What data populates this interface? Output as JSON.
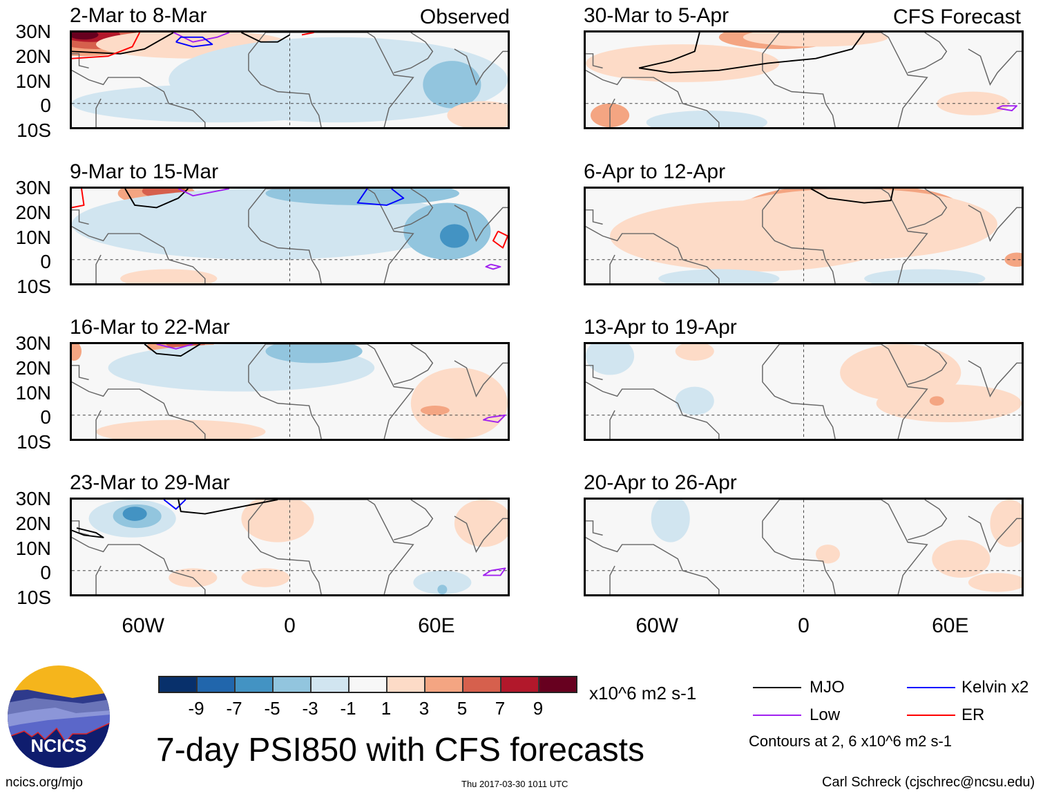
{
  "figure": {
    "main_title": "7-day PSI850 with CFS forecasts",
    "observed_label": "Observed",
    "forecast_label": "CFS Forecast",
    "logo_text": "NCICS",
    "website": "ncics.org/mjo",
    "timestamp": "Thu 2017-03-30 1011 UTC",
    "author": "Carl Schreck (cjschrec@ncsu.edu)"
  },
  "axes": {
    "y_ticks": [
      "30N",
      "20N",
      "10N",
      "0",
      "10S"
    ],
    "x_ticks": [
      "60W",
      "0",
      "60E"
    ]
  },
  "colorbar": {
    "colors": [
      "#08306b",
      "#2166ac",
      "#4393c3",
      "#92c5de",
      "#d1e5f0",
      "#f7f7f7",
      "#fddbc7",
      "#f4a582",
      "#d6604d",
      "#b2182b",
      "#67001f"
    ],
    "tick_labels": [
      "-9",
      "-7",
      "-5",
      "-3",
      "-1",
      "1",
      "3",
      "5",
      "7",
      "9"
    ],
    "units": "x10^6 m2 s-1"
  },
  "legend": {
    "items": [
      {
        "label": "MJO",
        "color": "#000000"
      },
      {
        "label": "Kelvin x2",
        "color": "#0000ff"
      },
      {
        "label": "Low",
        "color": "#a020f0"
      },
      {
        "label": "ER",
        "color": "#ff0000"
      }
    ],
    "note": "Contours at 2, 6 x10^6 m2 s-1"
  },
  "chart_data": {
    "type": "heatmap",
    "title": "7-day PSI850 with CFS forecasts",
    "variable": "850-hPa streamfunction anomaly",
    "units": "x10^6 m2 s-1",
    "xlim": [
      "90W",
      "90E"
    ],
    "ylim": [
      "10S",
      "30N"
    ],
    "x_tick_labels": [
      "60W",
      "0",
      "60E"
    ],
    "y_tick_labels": [
      "30N",
      "20N",
      "10N",
      "0",
      "10S"
    ],
    "levels": [
      -9,
      -7,
      -5,
      -3,
      -1,
      1,
      3,
      5,
      7,
      9
    ],
    "contour_levels": [
      2,
      6
    ],
    "contour_series": [
      "MJO",
      "Kelvin x2",
      "Low",
      "ER"
    ],
    "panels": [
      {
        "period": "2-Mar to 8-Mar",
        "kind": "Observed",
        "summary": "Strong positive (7 to >9) over Gulf of Mexico/Caribbean near 25-30N; weak negative across tropical Atlantic and Africa; moderate negative (-3 to -5) over Arabian Sea/Indian Ocean",
        "contours": [
          "MJO",
          "Kelvin x2",
          "Low",
          "ER"
        ]
      },
      {
        "period": "9-Mar to 15-Mar",
        "kind": "Observed",
        "summary": "Positive (5 to 7) centered near 50W 28N; negative (-3 to -5) over central Atlantic, Arabian Peninsula and Arabian Sea",
        "contours": [
          "MJO",
          "Kelvin x2",
          "Low",
          "ER"
        ]
      },
      {
        "period": "16-Mar to 22-Mar",
        "kind": "Observed",
        "summary": "Positive (3 to 5) near 45W 30N; weak negative over Atlantic and North Africa; weak positive over Indian Ocean and South America",
        "contours": [
          "MJO",
          "Low"
        ]
      },
      {
        "period": "23-Mar to 29-Mar",
        "kind": "Observed",
        "summary": "Negative (-3 to -5) over Caribbean; weak positive patches over West Africa and South Atlantic",
        "contours": [
          "MJO",
          "Kelvin x2",
          "Low"
        ]
      },
      {
        "period": "30-Mar to 5-Apr",
        "kind": "CFS Forecast",
        "summary": "Positive band (1 to 3) from Caribbean across Atlantic to North Africa; weak negative over South Atlantic",
        "contours": [
          "MJO",
          "Low"
        ]
      },
      {
        "period": "6-Apr to 12-Apr",
        "kind": "CFS Forecast",
        "summary": "Broad weak positive (1 to 3) over North Africa and tropical Atlantic; weak negative south of equator",
        "contours": [
          "MJO"
        ]
      },
      {
        "period": "13-Apr to 19-Apr",
        "kind": "CFS Forecast",
        "summary": "Weak positive over East Africa and western Indian Ocean; small weak negative patches in Atlantic",
        "contours": []
      },
      {
        "period": "20-Apr to 26-Apr",
        "kind": "CFS Forecast",
        "summary": "Mostly near zero; weak negative near Caribbean; weak positive over Arabian Sea and India",
        "contours": []
      }
    ]
  }
}
